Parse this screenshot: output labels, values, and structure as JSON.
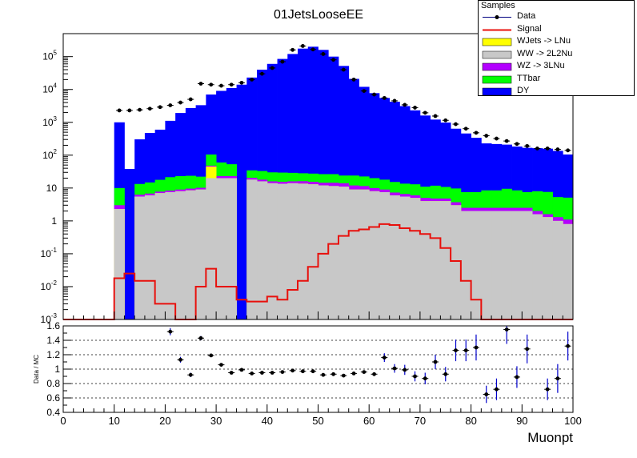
{
  "title": "01JetsLooseEE",
  "legend": {
    "header": "Samples",
    "items": [
      {
        "label": "Data",
        "kind": "data",
        "color": "#000000"
      },
      {
        "label": "Signal",
        "kind": "line",
        "color": "#e8100c"
      },
      {
        "label": "WJets -> LNu",
        "kind": "fill",
        "color": "#ffff00"
      },
      {
        "label": "WW -> 2L2Nu",
        "kind": "fill",
        "color": "#c8c8c8"
      },
      {
        "label": "WZ -> 3LNu",
        "kind": "fill",
        "color": "#b300ff"
      },
      {
        "label": "TTbar",
        "kind": "fill",
        "color": "#00ff00"
      },
      {
        "label": "DY",
        "kind": "fill",
        "color": "#0000ff"
      }
    ]
  },
  "chart_data": [
    {
      "type": "area",
      "panel": "main",
      "yscale": "log",
      "xlim": [
        0,
        100
      ],
      "ylim": [
        0.001,
        500000
      ],
      "ytick_labels": [
        "10^-3",
        "10^-2",
        "10^-1",
        "1",
        "10",
        "10^2",
        "10^3",
        "10^4",
        "10^5"
      ],
      "bin_edges": [
        0,
        2,
        4,
        6,
        8,
        10,
        12,
        14,
        16,
        18,
        20,
        22,
        24,
        26,
        28,
        30,
        32,
        34,
        36,
        38,
        40,
        42,
        44,
        46,
        48,
        50,
        52,
        54,
        56,
        58,
        60,
        62,
        64,
        66,
        68,
        70,
        72,
        74,
        76,
        78,
        80,
        82,
        84,
        86,
        88,
        90,
        92,
        94,
        96,
        98,
        100
      ],
      "stack_order": [
        "WW -> 2L2Nu",
        "WJets -> LNu",
        "WZ -> 3LNu",
        "TTbar",
        "DY"
      ],
      "series": [
        {
          "name": "WW -> 2L2Nu",
          "color": "#c8c8c8",
          "values": [
            0,
            0,
            0,
            0,
            0,
            2.3,
            0,
            5.5,
            6,
            7,
            7.5,
            8,
            8.5,
            9,
            20,
            20,
            20,
            0,
            18,
            16,
            14,
            13.5,
            14,
            13.5,
            13,
            12,
            11.5,
            11,
            9,
            9,
            8,
            7.5,
            6,
            5.5,
            5,
            4,
            4,
            4,
            3,
            2,
            2,
            2,
            2,
            2,
            2,
            2,
            1.6,
            1.3,
            1.0,
            0.8
          ]
        },
        {
          "name": "WJets -> LNu",
          "color": "#ffff00",
          "values": [
            0,
            0,
            0,
            0,
            0,
            0,
            0,
            0,
            0,
            0,
            0,
            0,
            0,
            0,
            25,
            0,
            0,
            0,
            0,
            0,
            0,
            0,
            0,
            0.15,
            0,
            0,
            0,
            0,
            0,
            0,
            0,
            0,
            0,
            0,
            0,
            0,
            0,
            0,
            0,
            0,
            0,
            0,
            0,
            0,
            0,
            0,
            0,
            0,
            0,
            0
          ]
        },
        {
          "name": "WZ -> 3LNu",
          "color": "#b300ff",
          "values": [
            0,
            0,
            0,
            0,
            0,
            0.7,
            0,
            0.8,
            0.8,
            0.8,
            0.9,
            1.0,
            1.1,
            1.2,
            3,
            3,
            3,
            0,
            2.5,
            2,
            2,
            2,
            2,
            2.5,
            2.5,
            2.5,
            3,
            3,
            3,
            2.5,
            2,
            1.5,
            1.3,
            1.1,
            1,
            1,
            0.8,
            0.8,
            0.7,
            0.5,
            0.5,
            0.5,
            0.5,
            0.5,
            0.5,
            0.5,
            0.4,
            0.3,
            0.3,
            0.3
          ]
        },
        {
          "name": "TTbar",
          "color": "#00ff00",
          "values": [
            0,
            0,
            0,
            0,
            0,
            7,
            0,
            7,
            8,
            10,
            13,
            14,
            14,
            12,
            57,
            37,
            30,
            0,
            14,
            15,
            14,
            14,
            13,
            12,
            12,
            12,
            12,
            10,
            12,
            11,
            10,
            9,
            8,
            7,
            7,
            6,
            7,
            6,
            6,
            5,
            5,
            6,
            6,
            7,
            6,
            5,
            6,
            6,
            4,
            4
          ]
        },
        {
          "name": "DY",
          "color": "#0000ff",
          "values": [
            0,
            0,
            0,
            0,
            0,
            990,
            38,
            290,
            460,
            580,
            1090,
            1900,
            2700,
            3300,
            6900,
            9000,
            11000,
            14000,
            23000,
            40000,
            60000,
            85000,
            120000,
            175000,
            200000,
            160000,
            100000,
            52000,
            21000,
            12000,
            7700,
            5500,
            4200,
            3100,
            2300,
            1600,
            1200,
            970,
            630,
            450,
            330,
            220,
            210,
            200,
            175,
            160,
            155,
            150,
            130,
            100
          ]
        }
      ],
      "signal": {
        "name": "Signal",
        "color": "#e8100c",
        "values": [
          0.001,
          0.001,
          0.001,
          0.001,
          0.001,
          0.018,
          0.025,
          0.015,
          0.015,
          0.003,
          0.003,
          0.001,
          0.001,
          0.01,
          0.035,
          0.01,
          0.01,
          0.004,
          0.0035,
          0.0035,
          0.005,
          0.004,
          0.008,
          0.015,
          0.04,
          0.1,
          0.2,
          0.35,
          0.5,
          0.55,
          0.65,
          0.8,
          0.75,
          0.6,
          0.5,
          0.4,
          0.3,
          0.15,
          0.06,
          0.015,
          0.004,
          0.001,
          0.001,
          0.001,
          0.001,
          0.001,
          0.001,
          0.001,
          0.001,
          0.001
        ]
      },
      "data_points": {
        "name": "Data",
        "x": [
          11,
          13,
          15,
          17,
          19,
          21,
          23,
          25,
          27,
          29,
          31,
          33,
          35,
          37,
          39,
          41,
          43,
          45,
          47,
          49,
          51,
          53,
          55,
          57,
          59,
          61,
          63,
          65,
          67,
          69,
          71,
          73,
          75,
          77,
          79,
          81,
          83,
          85,
          87,
          89,
          91,
          93,
          95,
          97,
          99
        ],
        "y": [
          2300,
          2300,
          2400,
          2600,
          2900,
          3300,
          4000,
          5000,
          15000,
          14000,
          13000,
          14000,
          16000,
          20000,
          30000,
          45000,
          70000,
          160000,
          210000,
          165000,
          120000,
          80000,
          40000,
          20000,
          9000,
          7000,
          5500,
          4500,
          3400,
          2800,
          1950,
          1550,
          1150,
          880,
          640,
          480,
          390,
          320,
          270,
          220,
          190,
          160,
          160,
          150,
          140
        ]
      }
    },
    {
      "type": "scatter",
      "panel": "ratio",
      "ylabel": "Data / MC",
      "xlabel": "Muonpt",
      "xlim": [
        0,
        100
      ],
      "ylim": [
        0.4,
        1.6
      ],
      "xticks": [
        0,
        10,
        20,
        30,
        40,
        50,
        60,
        70,
        80,
        90,
        100
      ],
      "yticks": [
        "0.4",
        "0.6",
        "0.8",
        "1",
        "1.2",
        "1.4",
        "1.6"
      ],
      "grid_y": [
        0.6,
        0.8,
        1.0,
        1.2,
        1.4
      ],
      "points": [
        {
          "x": 21,
          "y": 1.52,
          "err": 0.05
        },
        {
          "x": 23,
          "y": 1.13,
          "err": 0.04
        },
        {
          "x": 25,
          "y": 0.92,
          "err": 0.03
        },
        {
          "x": 27,
          "y": 1.43,
          "err": 0.03
        },
        {
          "x": 29,
          "y": 1.19,
          "err": 0.02
        },
        {
          "x": 31,
          "y": 1.06,
          "err": 0.02
        },
        {
          "x": 33,
          "y": 0.95,
          "err": 0.01
        },
        {
          "x": 35,
          "y": 0.99,
          "err": 0.01
        },
        {
          "x": 37,
          "y": 0.94,
          "err": 0.01
        },
        {
          "x": 39,
          "y": 0.95,
          "err": 0.01
        },
        {
          "x": 41,
          "y": 0.95,
          "err": 0.01
        },
        {
          "x": 43,
          "y": 0.96,
          "err": 0.01
        },
        {
          "x": 45,
          "y": 0.98,
          "err": 0.01
        },
        {
          "x": 47,
          "y": 0.97,
          "err": 0.01
        },
        {
          "x": 49,
          "y": 0.97,
          "err": 0.01
        },
        {
          "x": 51,
          "y": 0.92,
          "err": 0.01
        },
        {
          "x": 53,
          "y": 0.93,
          "err": 0.01
        },
        {
          "x": 55,
          "y": 0.91,
          "err": 0.01
        },
        {
          "x": 57,
          "y": 0.94,
          "err": 0.01
        },
        {
          "x": 59,
          "y": 0.96,
          "err": 0.02
        },
        {
          "x": 61,
          "y": 0.93,
          "err": 0.02
        },
        {
          "x": 63,
          "y": 1.16,
          "err": 0.06
        },
        {
          "x": 65,
          "y": 1.01,
          "err": 0.06
        },
        {
          "x": 67,
          "y": 0.99,
          "err": 0.07
        },
        {
          "x": 69,
          "y": 0.9,
          "err": 0.07
        },
        {
          "x": 71,
          "y": 0.87,
          "err": 0.08
        },
        {
          "x": 73,
          "y": 1.1,
          "err": 0.1
        },
        {
          "x": 75,
          "y": 0.93,
          "err": 0.1
        },
        {
          "x": 77,
          "y": 1.26,
          "err": 0.15
        },
        {
          "x": 79,
          "y": 1.26,
          "err": 0.15
        },
        {
          "x": 81,
          "y": 1.3,
          "err": 0.18
        },
        {
          "x": 83,
          "y": 0.65,
          "err": 0.12
        },
        {
          "x": 85,
          "y": 0.72,
          "err": 0.15
        },
        {
          "x": 87,
          "y": 1.55,
          "err": 0.2
        },
        {
          "x": 89,
          "y": 0.89,
          "err": 0.15
        },
        {
          "x": 91,
          "y": 1.28,
          "err": 0.2
        },
        {
          "x": 95,
          "y": 0.72,
          "err": 0.15
        },
        {
          "x": 97,
          "y": 0.87,
          "err": 0.2
        },
        {
          "x": 99,
          "y": 1.32,
          "err": 0.2
        }
      ]
    }
  ]
}
